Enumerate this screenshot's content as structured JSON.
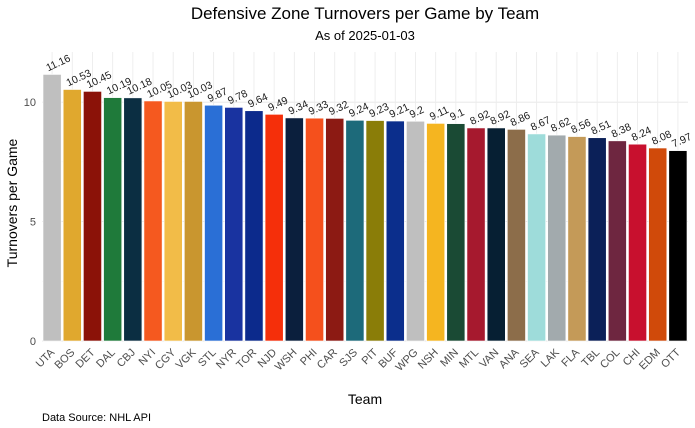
{
  "chart_data": {
    "type": "bar",
    "title": "Defensive Zone Turnovers per Game by Team",
    "subtitle": "As of 2025-01-03",
    "xlabel": "Team",
    "ylabel": "Turnovers per Game",
    "caption": "Data Source: NHL API",
    "ylim": [
      0,
      12.1
    ],
    "yticks": [
      0,
      5,
      10
    ],
    "grid": true,
    "legend": "none",
    "categories": [
      "UTA",
      "BOS",
      "DET",
      "DAL",
      "CBJ",
      "NYI",
      "CGY",
      "VGK",
      "STL",
      "NYR",
      "TOR",
      "NJD",
      "WSH",
      "PHI",
      "CAR",
      "SJS",
      "PIT",
      "BUF",
      "WPG",
      "NSH",
      "MIN",
      "MTL",
      "VAN",
      "ANA",
      "SEA",
      "LAK",
      "FLA",
      "TBL",
      "COL",
      "CHI",
      "EDM",
      "OTT"
    ],
    "values": [
      11.16,
      10.53,
      10.45,
      10.19,
      10.18,
      10.05,
      10.03,
      10.03,
      9.87,
      9.78,
      9.64,
      9.49,
      9.34,
      9.33,
      9.32,
      9.24,
      9.23,
      9.21,
      9.2,
      9.11,
      9.1,
      8.92,
      8.92,
      8.86,
      8.67,
      8.62,
      8.56,
      8.51,
      8.38,
      8.24,
      8.08,
      7.97
    ],
    "labels": [
      "11.16",
      "10.53",
      "10.45",
      "10.19",
      "10.18",
      "10.05",
      "10.03",
      "10.03",
      "9.87",
      "9.78",
      "9.64",
      "9.49",
      "9.34",
      "9.33",
      "9.32",
      "9.24",
      "9.23",
      "9.21",
      "9.2",
      "9.11",
      "9.1",
      "8.92",
      "8.92",
      "8.86",
      "8.67",
      "8.62",
      "8.56",
      "8.51",
      "8.38",
      "8.24",
      "8.08",
      "7.97"
    ],
    "colors": [
      "#bfbfbf",
      "#e0a82e",
      "#8b1208",
      "#1f7a3a",
      "#0b2e42",
      "#f5591f",
      "#f2bc48",
      "#c9962f",
      "#2a6fd6",
      "#1933a0",
      "#0c2a8c",
      "#f52f0a",
      "#0b1f3d",
      "#f5501c",
      "#8c1a13",
      "#1d6a7a",
      "#8a7d08",
      "#0b2e8c",
      "#bfbfbf",
      "#f5b520",
      "#1a4a34",
      "#a6192e",
      "#061f33",
      "#8c6d4a",
      "#9edcda",
      "#a2aaad",
      "#c49a58",
      "#0b2058",
      "#6e2640",
      "#c8102e",
      "#d04a0a",
      "#000000"
    ]
  }
}
